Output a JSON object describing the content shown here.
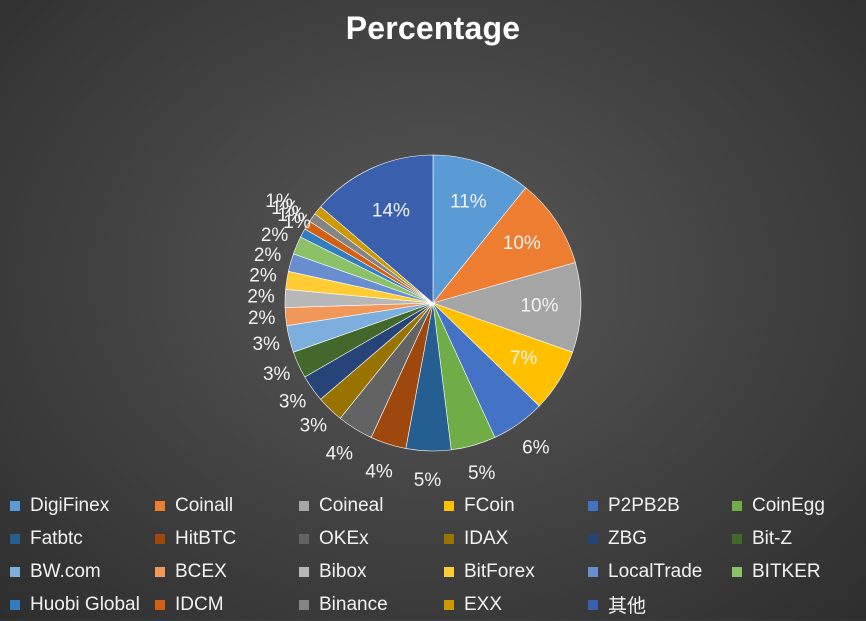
{
  "chart_data": {
    "type": "pie",
    "title": "Percentage",
    "legend_position": "bottom",
    "slices": [
      {
        "name": "DigiFinex",
        "value": 11,
        "label": "11%",
        "color": "#5b9bd5"
      },
      {
        "name": "Coinall",
        "value": 10,
        "label": "10%",
        "color": "#ed7d31"
      },
      {
        "name": "Coineal",
        "value": 10,
        "label": "10%",
        "color": "#a5a5a5"
      },
      {
        "name": "FCoin",
        "value": 7,
        "label": "7%",
        "color": "#ffc000"
      },
      {
        "name": "P2PB2B",
        "value": 6,
        "label": "6%",
        "color": "#4472c4"
      },
      {
        "name": "CoinEgg",
        "value": 5,
        "label": "5%",
        "color": "#70ad47"
      },
      {
        "name": "Fatbtc",
        "value": 5,
        "label": "5%",
        "color": "#255e91"
      },
      {
        "name": "HitBTC",
        "value": 4,
        "label": "4%",
        "color": "#9e480e"
      },
      {
        "name": "OKEx",
        "value": 4,
        "label": "4%",
        "color": "#636363"
      },
      {
        "name": "IDAX",
        "value": 3,
        "label": "3%",
        "color": "#997300"
      },
      {
        "name": "ZBG",
        "value": 3,
        "label": "3%",
        "color": "#264478"
      },
      {
        "name": "Bit-Z",
        "value": 3,
        "label": "3%",
        "color": "#43682b"
      },
      {
        "name": "BW.com",
        "value": 3,
        "label": "3%",
        "color": "#7cafdd"
      },
      {
        "name": "BCEX",
        "value": 2,
        "label": "2%",
        "color": "#f1975a"
      },
      {
        "name": "Bibox",
        "value": 2,
        "label": "2%",
        "color": "#b7b7b7"
      },
      {
        "name": "BitForex",
        "value": 2,
        "label": "2%",
        "color": "#ffcd33"
      },
      {
        "name": "LocalTrade",
        "value": 2,
        "label": "2%",
        "color": "#698ed0"
      },
      {
        "name": "BITKER",
        "value": 2,
        "label": "2%",
        "color": "#8cc168"
      },
      {
        "name": "Huobi Global",
        "value": 1,
        "label": "1%",
        "color": "#327dc2"
      },
      {
        "name": "IDCM",
        "value": 1,
        "label": "1%",
        "color": "#d26012"
      },
      {
        "name": "Binance",
        "value": 1,
        "label": "1%",
        "color": "#848484"
      },
      {
        "name": "EXX",
        "value": 1,
        "label": "1%",
        "color": "#cc9a00"
      },
      {
        "name": "其他",
        "value": 14,
        "label": "14%",
        "color": "#3a5fad"
      }
    ]
  }
}
